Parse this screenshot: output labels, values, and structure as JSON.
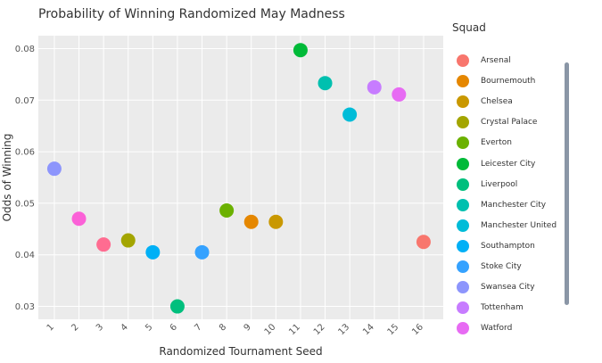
{
  "chart_data": {
    "type": "scatter",
    "title": "Probability of Winning Randomized May Madness",
    "xlabel": "Randomized Tournament Seed",
    "ylabel": "Odds of Winning",
    "xlim": [
      0.35,
      16.8
    ],
    "ylim": [
      0.0275,
      0.0825
    ],
    "x_ticks": [
      "1",
      "2",
      "3",
      "4",
      "5",
      "6",
      "7",
      "8",
      "9",
      "10",
      "11",
      "12",
      "13",
      "14",
      "15",
      "16"
    ],
    "y_ticks": [
      "0.03",
      "0.04",
      "0.05",
      "0.06",
      "0.07",
      "0.08"
    ],
    "y_tick_values": [
      0.03,
      0.04,
      0.05,
      0.06,
      0.07,
      0.08
    ],
    "grid": true,
    "legend_title": "Squad",
    "legend_position": "right",
    "legend": [
      {
        "label": "Arsenal",
        "color": "#f8766d"
      },
      {
        "label": "Bournemouth",
        "color": "#e58700"
      },
      {
        "label": "Chelsea",
        "color": "#c99800"
      },
      {
        "label": "Crystal Palace",
        "color": "#a3a500"
      },
      {
        "label": "Everton",
        "color": "#6bb100"
      },
      {
        "label": "Leicester City",
        "color": "#00ba38"
      },
      {
        "label": "Liverpool",
        "color": "#00bf7d"
      },
      {
        "label": "Manchester City",
        "color": "#00c0af"
      },
      {
        "label": "Manchester United",
        "color": "#00bcd8"
      },
      {
        "label": "Southampton",
        "color": "#00b0f6"
      },
      {
        "label": "Stoke City",
        "color": "#35a2ff"
      },
      {
        "label": "Swansea City",
        "color": "#8d95fc"
      },
      {
        "label": "Tottenham",
        "color": "#c77cff"
      },
      {
        "label": "Watford",
        "color": "#e76bf3"
      }
    ],
    "points": [
      {
        "x": 1,
        "y": 0.0567,
        "color": "#8d95fc"
      },
      {
        "x": 2,
        "y": 0.047,
        "color": "#fb61d7"
      },
      {
        "x": 3,
        "y": 0.042,
        "color": "#ff6c91"
      },
      {
        "x": 4,
        "y": 0.0428,
        "color": "#a3a500"
      },
      {
        "x": 5,
        "y": 0.0405,
        "color": "#00b0f6"
      },
      {
        "x": 6,
        "y": 0.03,
        "color": "#00bf7d"
      },
      {
        "x": 7,
        "y": 0.0405,
        "color": "#35a2ff"
      },
      {
        "x": 8,
        "y": 0.0486,
        "color": "#6bb100"
      },
      {
        "x": 9,
        "y": 0.0464,
        "color": "#e58700"
      },
      {
        "x": 10,
        "y": 0.0464,
        "color": "#c99800"
      },
      {
        "x": 11,
        "y": 0.0797,
        "color": "#00ba38"
      },
      {
        "x": 12,
        "y": 0.0733,
        "color": "#00c0af"
      },
      {
        "x": 13,
        "y": 0.0672,
        "color": "#00bcd8"
      },
      {
        "x": 14,
        "y": 0.0725,
        "color": "#c77cff"
      },
      {
        "x": 15,
        "y": 0.0711,
        "color": "#e76bf3"
      },
      {
        "x": 16,
        "y": 0.0425,
        "color": "#f8766d"
      }
    ]
  },
  "colors": {
    "panel_background": "#ebebeb",
    "grid": "#ffffff",
    "legend_scrollbar": "#8a96a6"
  }
}
